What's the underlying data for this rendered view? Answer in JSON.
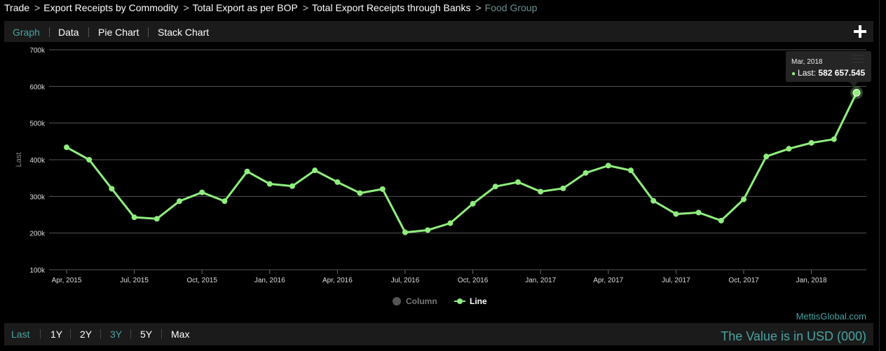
{
  "breadcrumb": {
    "items": [
      "Trade",
      "Export Receipts by Commodity",
      "Total Export as per BOP",
      "Total Export Receipts through Banks"
    ],
    "current": "Food Group",
    "separator": ">"
  },
  "tabs": {
    "graph": "Graph",
    "data": "Data",
    "pie": "Pie Chart",
    "stack": "Stack Chart",
    "active": "Graph"
  },
  "tooltip": {
    "date": "Mar, 2018",
    "series": "Last:",
    "value": "582 657.545"
  },
  "legend": {
    "column": "Column",
    "line": "Line"
  },
  "credit": "MettisGlobal.com",
  "ranges": {
    "last": "Last",
    "y1": "1Y",
    "y2": "2Y",
    "y3": "3Y",
    "y5": "5Y",
    "max": "Max"
  },
  "unit_note": "The Value is in USD (000)",
  "colors": {
    "line": "#90ee7e",
    "accent": "#4aa3a3",
    "grid": "#555555",
    "background": "#000000"
  },
  "chart_data": {
    "type": "line",
    "title": "",
    "xlabel": "",
    "ylabel": "Last",
    "ylim": [
      100000,
      700000
    ],
    "yticks": [
      100000,
      200000,
      300000,
      400000,
      500000,
      600000,
      700000
    ],
    "ytick_labels": [
      "100k",
      "200k",
      "300k",
      "400k",
      "500k",
      "600k",
      "700k"
    ],
    "xticks": [
      "Apr, 2015",
      "Jul, 2015",
      "Oct, 2015",
      "Jan, 2016",
      "Apr, 2016",
      "Jul, 2016",
      "Oct, 2016",
      "Jan, 2017",
      "Apr, 2017",
      "Jul, 2017",
      "Oct, 2017",
      "Jan, 2018"
    ],
    "x": [
      "Apr, 2015",
      "May, 2015",
      "Jun, 2015",
      "Jul, 2015",
      "Aug, 2015",
      "Sep, 2015",
      "Oct, 2015",
      "Nov, 2015",
      "Dec, 2015",
      "Jan, 2016",
      "Feb, 2016",
      "Mar, 2016",
      "Apr, 2016",
      "May, 2016",
      "Jun, 2016",
      "Jul, 2016",
      "Aug, 2016",
      "Sep, 2016",
      "Oct, 2016",
      "Nov, 2016",
      "Dec, 2016",
      "Jan, 2017",
      "Feb, 2017",
      "Mar, 2017",
      "Apr, 2017",
      "May, 2017",
      "Jun, 2017",
      "Jul, 2017",
      "Aug, 2017",
      "Sep, 2017",
      "Oct, 2017",
      "Nov, 2017",
      "Dec, 2017",
      "Jan, 2018",
      "Feb, 2018",
      "Mar, 2018"
    ],
    "series": [
      {
        "name": "Line",
        "values": [
          434000,
          400000,
          321000,
          243000,
          239000,
          287000,
          311000,
          287000,
          368000,
          334000,
          328000,
          371000,
          339000,
          309000,
          320000,
          202000,
          208000,
          227000,
          280000,
          327000,
          339000,
          313000,
          322000,
          364000,
          384000,
          371000,
          288000,
          252000,
          256000,
          234000,
          292000,
          409000,
          430000,
          446000,
          456000,
          582657.545
        ]
      }
    ],
    "highlight_index": 35,
    "grid": true,
    "legend": "bottom-center"
  }
}
